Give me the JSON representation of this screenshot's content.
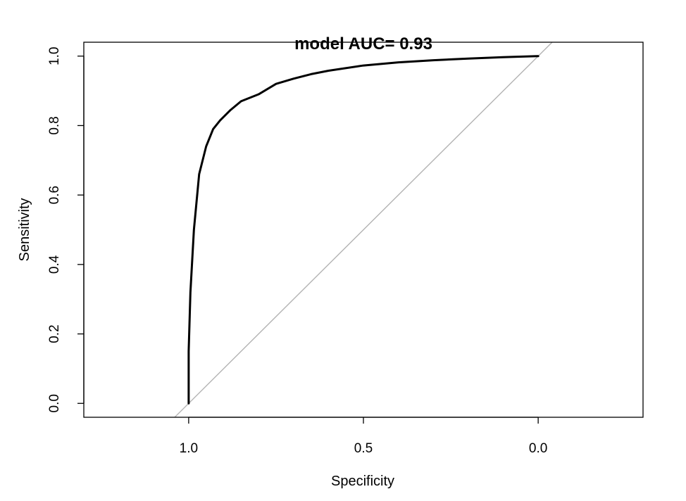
{
  "chart_data": {
    "type": "line",
    "title": "model AUC=  0.93",
    "xlabel": "Specificity",
    "ylabel": "Sensitivity",
    "x_reversed": true,
    "xlim": [
      1.3,
      -0.3
    ],
    "ylim": [
      -0.04,
      1.04
    ],
    "xticks": [
      {
        "value": 1.0,
        "label": "1.0"
      },
      {
        "value": 0.5,
        "label": "0.5"
      },
      {
        "value": 0.0,
        "label": "0.0"
      }
    ],
    "yticks": [
      {
        "value": 0.0,
        "label": "0.0"
      },
      {
        "value": 0.2,
        "label": "0.2"
      },
      {
        "value": 0.4,
        "label": "0.4"
      },
      {
        "value": 0.6,
        "label": "0.6"
      },
      {
        "value": 0.8,
        "label": "0.8"
      },
      {
        "value": 1.0,
        "label": "1.0"
      }
    ],
    "grid": false,
    "series": [
      {
        "color": "#000000",
        "x": [
          1.0,
          1.0,
          0.995,
          0.985,
          0.97,
          0.95,
          0.93,
          0.91,
          0.88,
          0.85,
          0.8,
          0.75,
          0.7,
          0.65,
          0.6,
          0.5,
          0.4,
          0.3,
          0.2,
          0.1,
          0.0
        ],
        "y": [
          0.0,
          0.15,
          0.32,
          0.5,
          0.66,
          0.74,
          0.79,
          0.815,
          0.845,
          0.87,
          0.89,
          0.92,
          0.935,
          0.948,
          0.958,
          0.973,
          0.982,
          0.988,
          0.993,
          0.997,
          1.0
        ]
      }
    ],
    "reference_line": {
      "from": [
        1.0,
        0.0
      ],
      "to": [
        0.0,
        1.0
      ],
      "color": "#b3b3b3"
    }
  }
}
